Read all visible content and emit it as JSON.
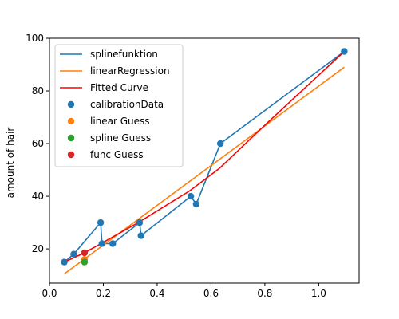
{
  "chart_data": {
    "type": "line",
    "title": "",
    "xlabel": "",
    "ylabel": "amount of hair",
    "xlim": [
      -0.0,
      1.15
    ],
    "ylim": [
      7,
      100
    ],
    "xticks": [
      0.0,
      0.2,
      0.4,
      0.6,
      0.8,
      1.0
    ],
    "xtick_labels": [
      "0.0",
      "0.2",
      "0.4",
      "0.6",
      "0.8",
      "1.0"
    ],
    "yticks": [
      20,
      40,
      60,
      80,
      100
    ],
    "ytick_labels": [
      "20",
      "40",
      "60",
      "80",
      "100"
    ],
    "grid": false,
    "legend_position": "top-left",
    "series": [
      {
        "name": "splinefunktion",
        "kind": "line",
        "color": "#1f77b4",
        "x": [
          0.055,
          0.09,
          0.19,
          0.195,
          0.235,
          0.335,
          0.34,
          0.525,
          0.545,
          0.635,
          1.095
        ],
        "y": [
          15,
          18,
          30,
          22,
          22,
          30,
          25,
          40,
          37,
          60,
          95
        ]
      },
      {
        "name": "linearRegression",
        "kind": "line",
        "color": "#ff7f0e",
        "x": [
          0.055,
          1.095
        ],
        "y": [
          10.5,
          89
        ]
      },
      {
        "name": "Fitted Curve",
        "kind": "line",
        "color": "#ff0000",
        "x": [
          0.055,
          0.13,
          0.2,
          0.33,
          0.52,
          0.63,
          0.8,
          1.095
        ],
        "y": [
          15,
          18.5,
          22.5,
          30,
          42,
          50.5,
          67,
          95
        ]
      },
      {
        "name": "calibrationData",
        "kind": "scatter",
        "color": "#1f77b4",
        "x": [
          0.055,
          0.09,
          0.19,
          0.195,
          0.235,
          0.335,
          0.34,
          0.525,
          0.545,
          0.635,
          1.095
        ],
        "y": [
          15,
          18,
          30,
          22,
          22,
          30,
          25,
          40,
          37,
          60,
          95
        ]
      },
      {
        "name": "linear Guess",
        "kind": "scatter",
        "color": "#ff7f0e",
        "x": [
          0.13
        ],
        "y": [
          16
        ]
      },
      {
        "name": "spline Guess",
        "kind": "scatter",
        "color": "#2ca02c",
        "x": [
          0.13
        ],
        "y": [
          15
        ]
      },
      {
        "name": "func Guess",
        "kind": "scatter",
        "color": "#d62728",
        "x": [
          0.13
        ],
        "y": [
          18.5
        ]
      }
    ]
  }
}
